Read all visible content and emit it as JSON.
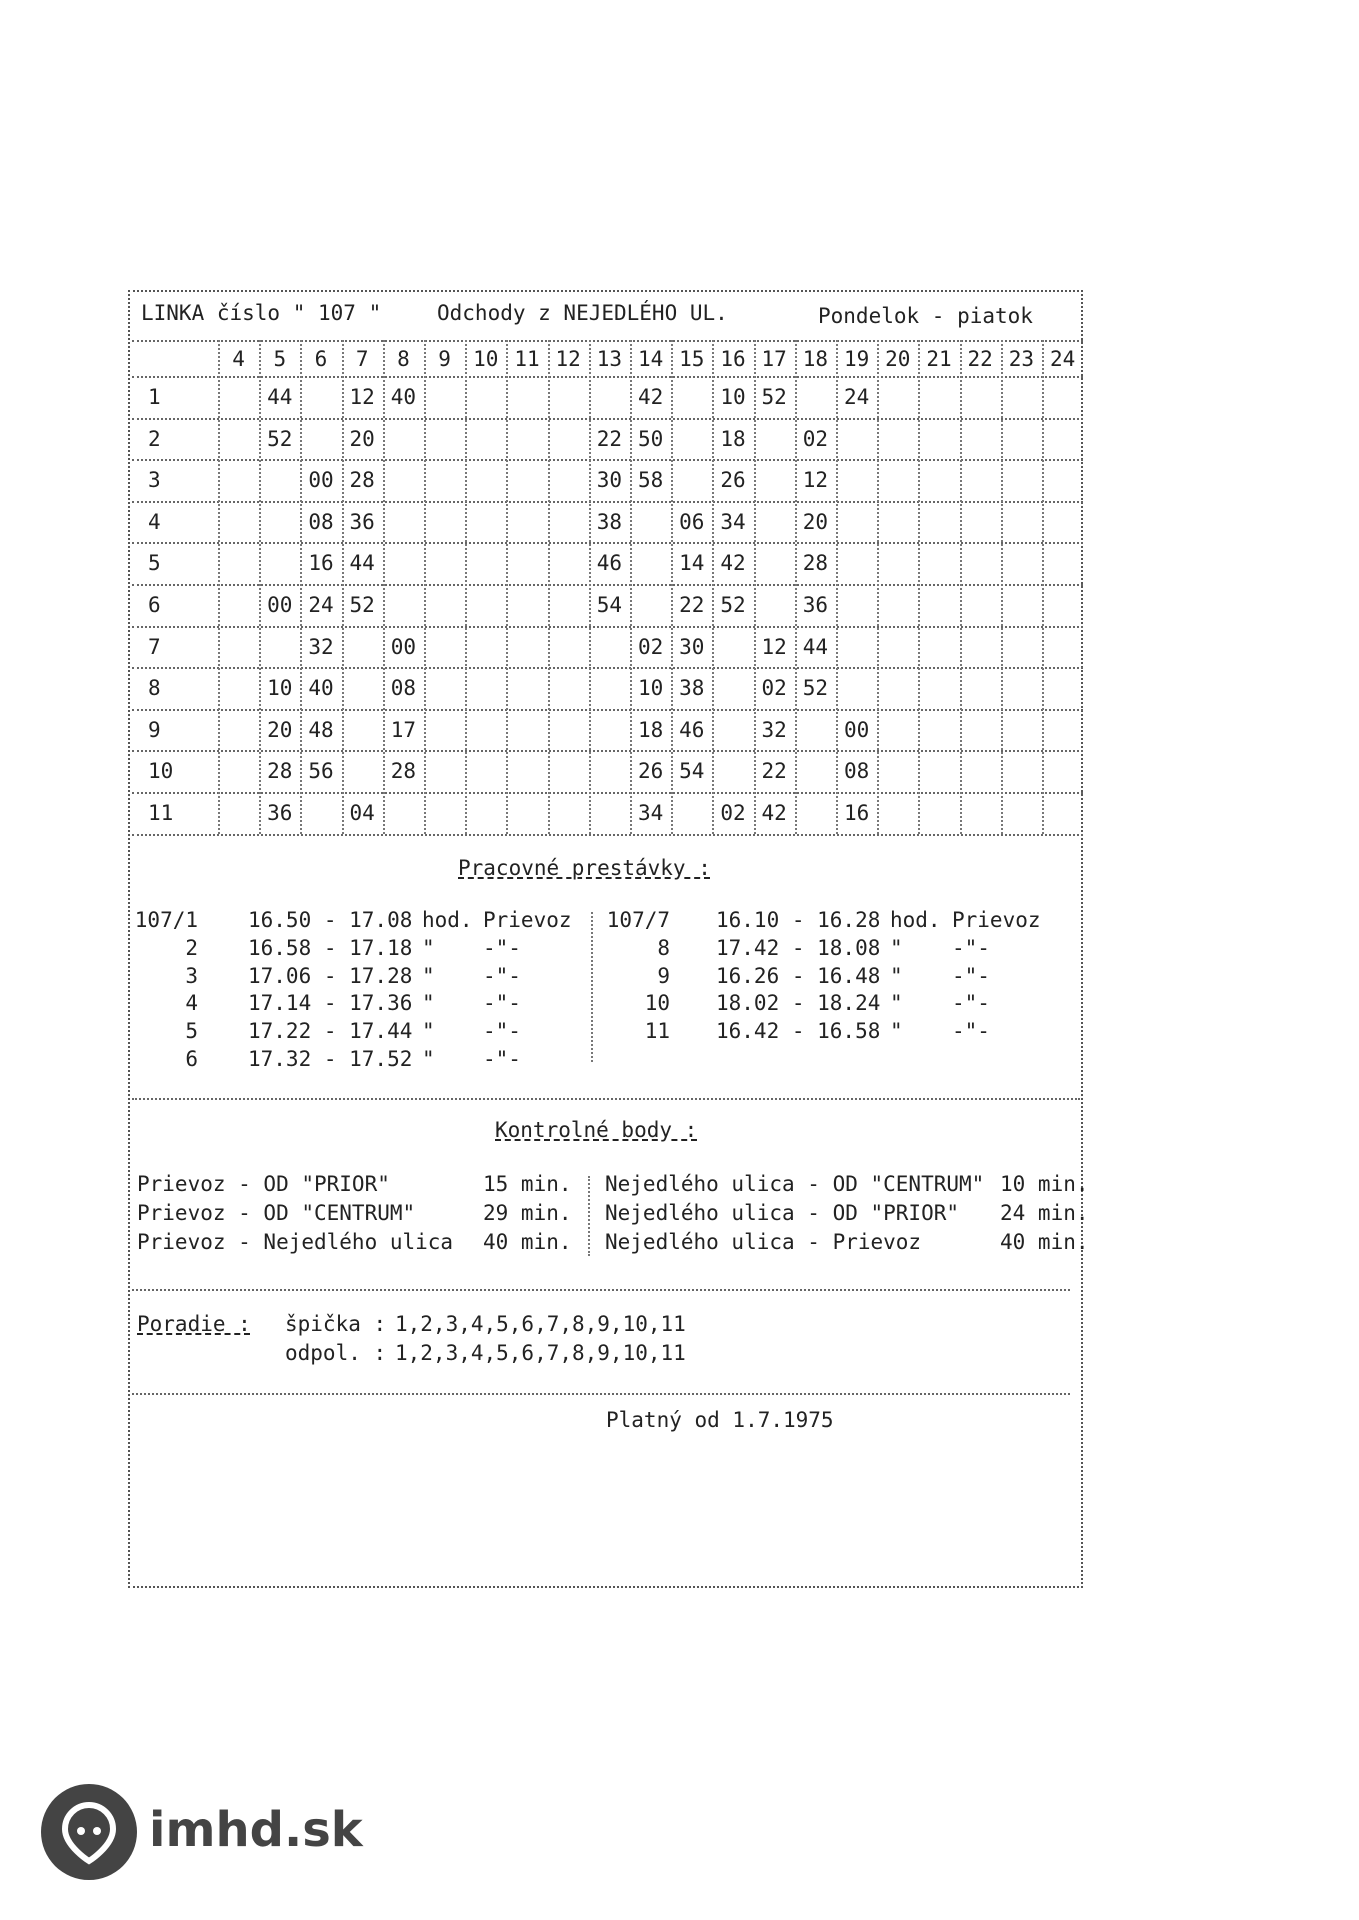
{
  "header": {
    "line": "LINKA číslo \" 107 \"",
    "departures": "Odchody z NEJEDLÉHO UL.",
    "days": "Pondelok - piatok"
  },
  "timetable": {
    "hours": [
      "4",
      "5",
      "6",
      "7",
      "8",
      "9",
      "10",
      "11",
      "12",
      "13",
      "14",
      "15",
      "16",
      "17",
      "18",
      "19",
      "20",
      "21",
      "22",
      "23",
      "24"
    ],
    "rows": [
      {
        "label": "1",
        "cells": [
          null,
          "44",
          null,
          "12",
          "40",
          null,
          null,
          null,
          null,
          null,
          "42",
          null,
          "10",
          "52",
          null,
          "24",
          null,
          null,
          null,
          null,
          null
        ]
      },
      {
        "label": "2",
        "cells": [
          null,
          "52",
          null,
          "20",
          null,
          null,
          null,
          null,
          null,
          "22",
          "50",
          null,
          "18",
          null,
          "02",
          null,
          null,
          null,
          null,
          null,
          null
        ]
      },
      {
        "label": "3",
        "cells": [
          null,
          null,
          "00",
          "28",
          null,
          null,
          null,
          null,
          null,
          "30",
          "58",
          null,
          "26",
          null,
          "12",
          null,
          null,
          null,
          null,
          null,
          null
        ]
      },
      {
        "label": "4",
        "cells": [
          null,
          null,
          "08",
          "36",
          null,
          null,
          null,
          null,
          null,
          "38",
          null,
          "06",
          "34",
          null,
          "20",
          null,
          null,
          null,
          null,
          null,
          null
        ]
      },
      {
        "label": "5",
        "cells": [
          null,
          null,
          "16",
          "44",
          null,
          null,
          null,
          null,
          null,
          "46",
          null,
          "14",
          "42",
          null,
          "28",
          null,
          null,
          null,
          null,
          null,
          null
        ]
      },
      {
        "label": "6",
        "cells": [
          null,
          "00",
          "24",
          "52",
          null,
          null,
          null,
          null,
          null,
          "54",
          null,
          "22",
          "52",
          null,
          "36",
          null,
          null,
          null,
          null,
          null,
          null
        ]
      },
      {
        "label": "7",
        "cells": [
          null,
          null,
          "32",
          null,
          "00",
          null,
          null,
          null,
          null,
          null,
          "02",
          "30",
          null,
          "12",
          "44",
          null,
          null,
          null,
          null,
          null,
          null
        ]
      },
      {
        "label": "8",
        "cells": [
          null,
          "10",
          "40",
          null,
          "08",
          null,
          null,
          null,
          null,
          null,
          "10",
          "38",
          null,
          "02",
          "52",
          null,
          null,
          null,
          null,
          null,
          null
        ]
      },
      {
        "label": "9",
        "cells": [
          null,
          "20",
          "48",
          null,
          "17",
          null,
          null,
          null,
          null,
          null,
          "18",
          "46",
          null,
          "32",
          null,
          "00",
          null,
          null,
          null,
          null,
          null
        ]
      },
      {
        "label": "10",
        "cells": [
          null,
          "28",
          "56",
          null,
          "28",
          null,
          null,
          null,
          null,
          null,
          "26",
          "54",
          null,
          "22",
          null,
          "08",
          null,
          null,
          null,
          null,
          null
        ]
      },
      {
        "label": "11",
        "cells": [
          null,
          "36",
          null,
          "04",
          null,
          null,
          null,
          null,
          null,
          null,
          "34",
          null,
          "02",
          "42",
          null,
          "16",
          null,
          null,
          null,
          null,
          null
        ]
      }
    ]
  },
  "breaks": {
    "title": "Pracovné prestávky :",
    "left": [
      [
        "107/1",
        "16.50 - 17.08",
        "hod.",
        "Prievoz"
      ],
      [
        "2",
        "16.58 - 17.18",
        "\"",
        "-\"-"
      ],
      [
        "3",
        "17.06 - 17.28",
        "\"",
        "-\"-"
      ],
      [
        "4",
        "17.14 - 17.36",
        "\"",
        "-\"-"
      ],
      [
        "5",
        "17.22 - 17.44",
        "\"",
        "-\"-"
      ],
      [
        "6",
        "17.32 - 17.52",
        "\"",
        "-\"-"
      ]
    ],
    "right": [
      [
        "107/7",
        "16.10 - 16.28",
        "hod.",
        "Prievoz"
      ],
      [
        "8",
        "17.42 - 18.08",
        "\"",
        "-\"-"
      ],
      [
        "9",
        "16.26 - 16.48",
        "\"",
        "-\"-"
      ],
      [
        "10",
        "18.02 - 18.24",
        "\"",
        "-\"-"
      ],
      [
        "11",
        "16.42 - 16.58",
        "\"",
        "-\"-"
      ]
    ]
  },
  "checkpoints": {
    "title": "Kontrolné body :",
    "left": [
      [
        "Prievoz - OD \"PRIOR\"",
        "15 min."
      ],
      [
        "Prievoz - OD \"CENTRUM\"",
        "29 min."
      ],
      [
        "Prievoz - Nejedlého ulica",
        "40 min."
      ]
    ],
    "right": [
      [
        "Nejedlého ulica - OD \"CENTRUM\"",
        "10 min."
      ],
      [
        "Nejedlého ulica - OD \"PRIOR\"",
        "24 min."
      ],
      [
        "Nejedlého ulica - Prievoz",
        "40 min."
      ]
    ]
  },
  "order": {
    "label": "Poradie :",
    "rows": [
      [
        "špička :",
        "1,2,3,4,5,6,7,8,9,10,11"
      ],
      [
        "odpol. :",
        "1,2,3,4,5,6,7,8,9,10,11"
      ]
    ]
  },
  "valid_from": "Platný od 1.7.1975",
  "logo": "imhd.sk"
}
